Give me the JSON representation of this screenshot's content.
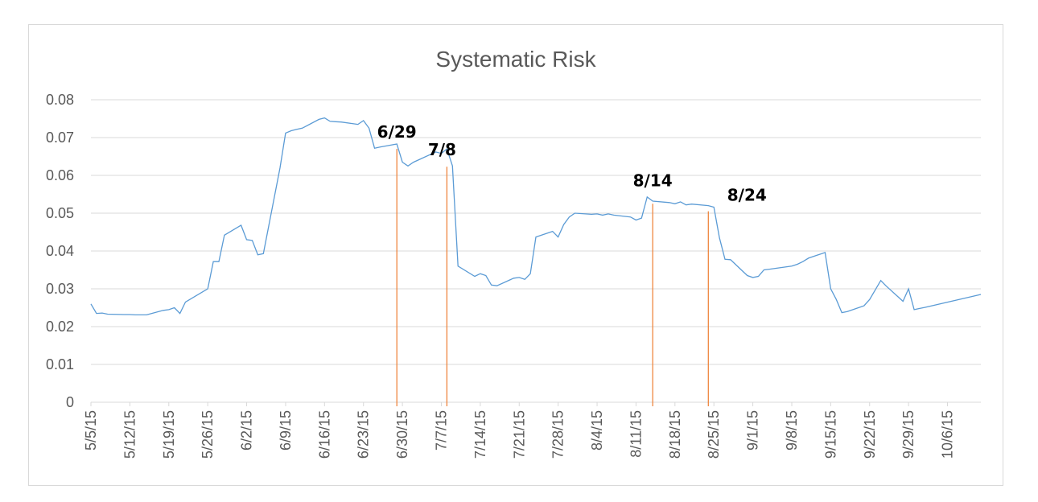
{
  "chart_data": {
    "type": "line",
    "title": "Systematic Risk",
    "xlabel": "",
    "ylabel": "",
    "ylim": [
      0,
      0.08
    ],
    "yticks": [
      "0",
      "0.01",
      "0.02",
      "0.03",
      "0.04",
      "0.05",
      "0.06",
      "0.07",
      "0.08"
    ],
    "grid": true,
    "legend": "none",
    "colors": {
      "series": "#5b9bd5",
      "marker_lines": "#ed7d31",
      "grid": "#d9d9d9",
      "text": "#595959"
    },
    "xlim": [
      "2015-05-05",
      "2015-10-12"
    ],
    "xtick_labels": [
      {
        "date": "2015-05-05",
        "label": "5/5/15"
      },
      {
        "date": "2015-05-12",
        "label": "5/12/15"
      },
      {
        "date": "2015-05-19",
        "label": "5/19/15"
      },
      {
        "date": "2015-05-26",
        "label": "5/26/15"
      },
      {
        "date": "2015-06-02",
        "label": "6/2/15"
      },
      {
        "date": "2015-06-09",
        "label": "6/9/15"
      },
      {
        "date": "2015-06-16",
        "label": "6/16/15"
      },
      {
        "date": "2015-06-23",
        "label": "6/23/15"
      },
      {
        "date": "2015-06-30",
        "label": "6/30/15"
      },
      {
        "date": "2015-07-07",
        "label": "7/7/15"
      },
      {
        "date": "2015-07-14",
        "label": "7/14/15"
      },
      {
        "date": "2015-07-21",
        "label": "7/21/15"
      },
      {
        "date": "2015-07-28",
        "label": "7/28/15"
      },
      {
        "date": "2015-08-04",
        "label": "8/4/15"
      },
      {
        "date": "2015-08-11",
        "label": "8/11/15"
      },
      {
        "date": "2015-08-18",
        "label": "8/18/15"
      },
      {
        "date": "2015-08-25",
        "label": "8/25/15"
      },
      {
        "date": "2015-09-01",
        "label": "9/1/15"
      },
      {
        "date": "2015-09-08",
        "label": "9/8/15"
      },
      {
        "date": "2015-09-15",
        "label": "9/15/15"
      },
      {
        "date": "2015-09-22",
        "label": "9/22/15"
      },
      {
        "date": "2015-09-29",
        "label": "9/29/15"
      },
      {
        "date": "2015-10-06",
        "label": "10/6/15"
      }
    ],
    "series": [
      {
        "x": [
          "2015-05-05",
          "2015-05-06",
          "2015-05-07",
          "2015-05-08",
          "2015-05-11",
          "2015-05-12",
          "2015-05-13",
          "2015-05-14",
          "2015-05-15",
          "2015-05-18",
          "2015-05-19",
          "2015-05-20",
          "2015-05-21",
          "2015-05-22",
          "2015-05-26",
          "2015-05-27",
          "2015-05-28",
          "2015-05-29",
          "2015-06-01",
          "2015-06-02",
          "2015-06-03",
          "2015-06-04",
          "2015-06-05",
          "2015-06-08",
          "2015-06-09",
          "2015-06-10",
          "2015-06-11",
          "2015-06-12",
          "2015-06-15",
          "2015-06-16",
          "2015-06-17",
          "2015-06-18",
          "2015-06-19",
          "2015-06-22",
          "2015-06-23",
          "2015-06-24",
          "2015-06-25",
          "2015-06-26",
          "2015-06-29",
          "2015-06-30",
          "2015-07-01",
          "2015-07-02",
          "2015-07-06",
          "2015-07-07",
          "2015-07-08",
          "2015-07-09",
          "2015-07-10",
          "2015-07-13",
          "2015-07-14",
          "2015-07-15",
          "2015-07-16",
          "2015-07-17",
          "2015-07-20",
          "2015-07-21",
          "2015-07-22",
          "2015-07-23",
          "2015-07-24",
          "2015-07-27",
          "2015-07-28",
          "2015-07-29",
          "2015-07-30",
          "2015-07-31",
          "2015-08-03",
          "2015-08-04",
          "2015-08-05",
          "2015-08-06",
          "2015-08-07",
          "2015-08-10",
          "2015-08-11",
          "2015-08-12",
          "2015-08-13",
          "2015-08-14",
          "2015-08-17",
          "2015-08-18",
          "2015-08-19",
          "2015-08-20",
          "2015-08-21",
          "2015-08-24",
          "2015-08-25",
          "2015-08-26",
          "2015-08-27",
          "2015-08-28",
          "2015-08-31",
          "2015-09-01",
          "2015-09-02",
          "2015-09-03",
          "2015-09-04",
          "2015-09-08",
          "2015-09-09",
          "2015-09-10",
          "2015-09-11",
          "2015-09-14",
          "2015-09-15",
          "2015-09-16",
          "2015-09-17",
          "2015-09-18",
          "2015-09-21",
          "2015-09-22",
          "2015-09-23",
          "2015-09-24",
          "2015-09-25",
          "2015-09-28",
          "2015-09-29",
          "2015-09-30",
          "2015-10-01",
          "2015-10-02",
          "2015-10-12"
        ],
        "values": [
          0.026,
          0.0235,
          0.0236,
          0.0233,
          0.0232,
          0.0232,
          0.0231,
          0.0231,
          0.0231,
          0.0243,
          0.0245,
          0.025,
          0.0235,
          0.0265,
          0.03,
          0.0372,
          0.0372,
          0.0442,
          0.0468,
          0.043,
          0.0428,
          0.039,
          0.0393,
          0.062,
          0.0712,
          0.0718,
          0.0722,
          0.0725,
          0.0748,
          0.0752,
          0.0743,
          0.0742,
          0.0741,
          0.0735,
          0.0745,
          0.0725,
          0.0672,
          0.0675,
          0.0683,
          0.0635,
          0.0625,
          0.0635,
          0.0662,
          0.0658,
          0.067,
          0.0625,
          0.036,
          0.0333,
          0.034,
          0.0335,
          0.031,
          0.0308,
          0.0328,
          0.033,
          0.0325,
          0.034,
          0.0437,
          0.0452,
          0.0437,
          0.047,
          0.049,
          0.05,
          0.0497,
          0.0498,
          0.0495,
          0.0498,
          0.0495,
          0.049,
          0.0482,
          0.0487,
          0.0543,
          0.0532,
          0.0528,
          0.0525,
          0.053,
          0.0522,
          0.0524,
          0.052,
          0.0516,
          0.0435,
          0.0378,
          0.0377,
          0.0335,
          0.033,
          0.0333,
          0.035,
          0.0352,
          0.036,
          0.0365,
          0.0372,
          0.0381,
          0.0396,
          0.03,
          0.0272,
          0.0237,
          0.024,
          0.0255,
          0.0272,
          0.0297,
          0.0322,
          0.0307,
          0.0267,
          0.03,
          0.0245,
          0.0248,
          0.0251,
          0.0285
        ]
      }
    ],
    "annotations": [
      {
        "label": "6/29",
        "date": "2015-06-29",
        "line_top": 0.067
      },
      {
        "label": "7/8",
        "date": "2015-07-08",
        "line_top": 0.0623
      },
      {
        "label": "8/14",
        "date": "2015-08-14",
        "line_top": 0.0525
      },
      {
        "label": "8/24",
        "date": "2015-08-24",
        "line_top": 0.0505
      }
    ]
  }
}
